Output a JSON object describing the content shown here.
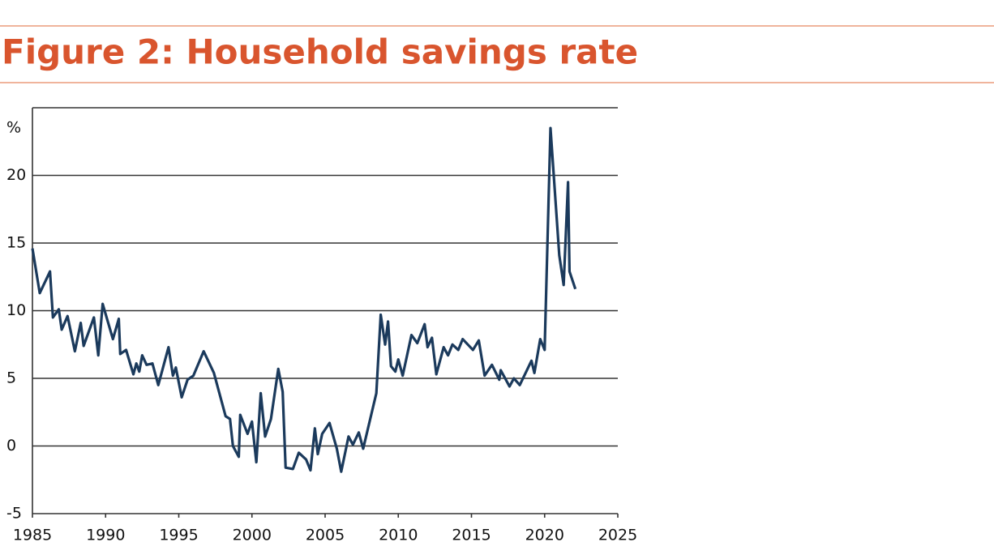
{
  "chart_data": {
    "type": "line",
    "title": "Figure 2: Household savings rate",
    "y_label": "%",
    "x": [
      1985.0,
      1985.5,
      1986.2,
      1986.4,
      1986.8,
      1987.0,
      1987.4,
      1987.9,
      1988.3,
      1988.5,
      1989.2,
      1989.5,
      1989.8,
      1990.5,
      1990.9,
      1991.0,
      1991.4,
      1991.9,
      1992.1,
      1992.3,
      1992.5,
      1992.8,
      1993.2,
      1993.6,
      1994.3,
      1994.6,
      1994.8,
      1995.2,
      1995.6,
      1996.0,
      1996.7,
      1997.4,
      1998.2,
      1998.5,
      1998.7,
      1999.1,
      1999.2,
      1999.7,
      2000.0,
      2000.3,
      2000.6,
      2000.9,
      2001.3,
      2001.8,
      2002.1,
      2002.3,
      2002.8,
      2003.2,
      2003.7,
      2004.0,
      2004.3,
      2004.5,
      2004.8,
      2005.3,
      2005.8,
      2006.1,
      2006.6,
      2006.9,
      2007.3,
      2007.6,
      2008.5,
      2008.8,
      2009.1,
      2009.3,
      2009.5,
      2009.8,
      2010.0,
      2010.3,
      2010.9,
      2011.3,
      2011.8,
      2012.0,
      2012.3,
      2012.6,
      2013.1,
      2013.4,
      2013.7,
      2014.1,
      2014.4,
      2015.1,
      2015.5,
      2015.9,
      2016.4,
      2016.9,
      2017.0,
      2017.6,
      2017.9,
      2018.3,
      2019.1,
      2019.3,
      2019.7,
      2020.0,
      2020.4,
      2021.0,
      2021.3,
      2021.6,
      2021.7,
      2022.1
    ],
    "series": [
      {
        "name": "Household savings rate",
        "color": "#1b3a5c",
        "values": [
          14.6,
          11.3,
          12.9,
          9.5,
          10.1,
          8.6,
          9.6,
          7.0,
          9.1,
          7.4,
          9.5,
          6.7,
          10.5,
          7.9,
          9.4,
          6.8,
          7.1,
          5.3,
          6.1,
          5.5,
          6.7,
          6.0,
          6.1,
          4.5,
          7.3,
          5.2,
          5.8,
          3.6,
          4.9,
          5.2,
          7.0,
          5.4,
          2.2,
          2.0,
          0.0,
          -0.8,
          2.3,
          0.9,
          1.8,
          -1.2,
          3.9,
          0.7,
          2.0,
          5.7,
          4.0,
          -1.6,
          -1.7,
          -0.5,
          -1.0,
          -1.8,
          1.3,
          -0.6,
          0.9,
          1.7,
          -0.2,
          -1.9,
          0.7,
          0.1,
          1.0,
          -0.2,
          3.9,
          9.7,
          7.5,
          9.2,
          5.9,
          5.5,
          6.4,
          5.2,
          8.2,
          7.6,
          9.0,
          7.3,
          8.0,
          5.3,
          7.3,
          6.7,
          7.5,
          7.1,
          7.9,
          7.1,
          7.8,
          5.2,
          6.0,
          4.9,
          5.6,
          4.4,
          5.0,
          4.5,
          6.3,
          5.4,
          7.9,
          7.1,
          23.5,
          14.1,
          11.9,
          19.5,
          12.9,
          11.6
        ]
      }
    ],
    "xlim": [
      1985,
      2025
    ],
    "xticks": [
      1985,
      1990,
      1995,
      2000,
      2005,
      2010,
      2015,
      2020,
      2025
    ],
    "ylim": [
      -5,
      25
    ],
    "yticks": [
      -5,
      0,
      5,
      10,
      15,
      20
    ],
    "grid": true
  }
}
